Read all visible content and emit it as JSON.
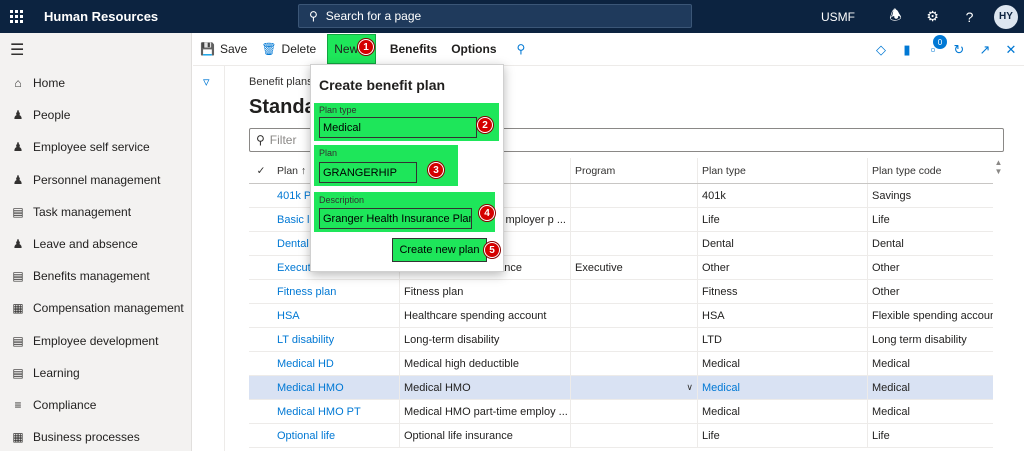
{
  "topbar": {
    "app_title": "Human Resources",
    "search_placeholder": "Search for a page",
    "company": "USMF",
    "user_initials": "HY"
  },
  "leftnav": {
    "items": [
      {
        "label": "Home",
        "icon": "home-icon"
      },
      {
        "label": "People",
        "icon": "people-icon"
      },
      {
        "label": "Employee self service",
        "icon": "person-icon"
      },
      {
        "label": "Personnel management",
        "icon": "group-icon"
      },
      {
        "label": "Task management",
        "icon": "clipboard-icon"
      },
      {
        "label": "Leave and absence",
        "icon": "person-time-icon"
      },
      {
        "label": "Benefits management",
        "icon": "document-icon"
      },
      {
        "label": "Compensation management",
        "icon": "calculator-icon"
      },
      {
        "label": "Employee development",
        "icon": "development-icon"
      },
      {
        "label": "Learning",
        "icon": "book-icon"
      },
      {
        "label": "Compliance",
        "icon": "list-icon"
      },
      {
        "label": "Business processes",
        "icon": "process-icon"
      }
    ]
  },
  "actionpane": {
    "save_label": "Save",
    "delete_label": "Delete",
    "new_label": "New",
    "benefits_label": "Benefits",
    "options_label": "Options",
    "notification_count": "0"
  },
  "page": {
    "breadcrumb": "Benefit plans",
    "title": "Standar",
    "filter_placeholder": "Filter"
  },
  "grid": {
    "headers": {
      "plan": "Plan ↑",
      "program": "Program",
      "plan_type": "Plan type",
      "plan_type_code": "Plan type code"
    },
    "rows": [
      {
        "plan": "401k Pl",
        "description": "",
        "program": "",
        "plan_type": "401k",
        "plan_type_code": "Savings"
      },
      {
        "plan": "Basic li",
        "description": "mployer p ...",
        "program": "",
        "plan_type": "Life",
        "plan_type_code": "Life"
      },
      {
        "plan": "Dental",
        "description": "",
        "program": "",
        "plan_type": "Dental",
        "plan_type_code": "Dental"
      },
      {
        "plan": "Executive car",
        "description": "Executive car allowance",
        "program": "Executive",
        "plan_type": "Other",
        "plan_type_code": "Other"
      },
      {
        "plan": "Fitness plan",
        "description": "Fitness plan",
        "program": "",
        "plan_type": "Fitness",
        "plan_type_code": "Other"
      },
      {
        "plan": "HSA",
        "description": "Healthcare spending account",
        "program": "",
        "plan_type": "HSA",
        "plan_type_code": "Flexible spending accoun"
      },
      {
        "plan": "LT disability",
        "description": "Long-term disability",
        "program": "",
        "plan_type": "LTD",
        "plan_type_code": "Long term disability"
      },
      {
        "plan": "Medical HD",
        "description": "Medical high deductible",
        "program": "",
        "plan_type": "Medical",
        "plan_type_code": "Medical"
      },
      {
        "plan": "Medical HMO",
        "description": "Medical HMO",
        "program": "",
        "plan_type": "Medical",
        "plan_type_code": "Medical"
      },
      {
        "plan": "Medical HMO PT",
        "description": "Medical HMO part-time employ ...",
        "program": "",
        "plan_type": "Medical",
        "plan_type_code": "Medical"
      },
      {
        "plan": "Optional life",
        "description": "Optional life insurance",
        "program": "",
        "plan_type": "Life",
        "plan_type_code": "Life"
      }
    ]
  },
  "dialog": {
    "title": "Create benefit plan",
    "plan_type_label": "Plan type",
    "plan_type_value": "Medical",
    "plan_label": "Plan",
    "plan_value": "GRANGERHIP",
    "description_label": "Description",
    "description_value": "Granger Health Insurance Plan",
    "create_button_label": "Create new plan"
  },
  "steps": [
    "1",
    "2",
    "3",
    "4",
    "5"
  ],
  "colors": {
    "topbar": "#0c2340",
    "highlight": "#1ee65a",
    "step_marker": "#d40000",
    "link": "#0078d4",
    "selected_row": "#d9e2f3"
  }
}
